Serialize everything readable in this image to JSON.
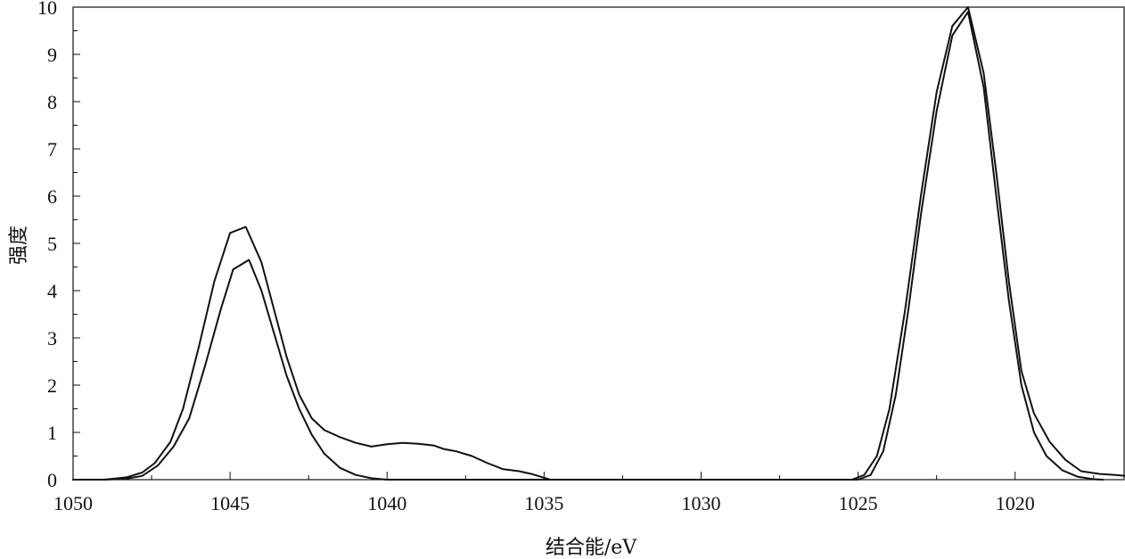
{
  "chart_data": {
    "type": "line",
    "title": "",
    "xlabel": "结合能/eV",
    "ylabel": "强度",
    "xlim": [
      1050,
      1016.5
    ],
    "ylim": [
      0,
      10
    ],
    "x_reversed": true,
    "grid": false,
    "x_ticks": [
      1050,
      1045,
      1040,
      1035,
      1030,
      1025,
      1020
    ],
    "y_ticks": [
      0,
      1,
      2,
      3,
      4,
      5,
      6,
      7,
      8,
      9,
      10
    ],
    "series": [
      {
        "points": [
          [
            1050.0,
            0.0
          ],
          [
            1049.0,
            0.0
          ],
          [
            1048.3,
            0.05
          ],
          [
            1047.8,
            0.15
          ],
          [
            1047.4,
            0.35
          ],
          [
            1046.9,
            0.8
          ],
          [
            1046.5,
            1.5
          ],
          [
            1046.0,
            2.8
          ],
          [
            1045.5,
            4.2
          ],
          [
            1045.0,
            5.22
          ],
          [
            1044.5,
            5.35
          ],
          [
            1044.0,
            4.6
          ],
          [
            1043.6,
            3.6
          ],
          [
            1043.2,
            2.6
          ],
          [
            1042.8,
            1.8
          ],
          [
            1042.4,
            1.3
          ],
          [
            1042.0,
            1.05
          ],
          [
            1041.5,
            0.9
          ],
          [
            1041.0,
            0.78
          ],
          [
            1040.5,
            0.7
          ],
          [
            1040.0,
            0.75
          ],
          [
            1039.5,
            0.78
          ],
          [
            1039.0,
            0.76
          ],
          [
            1038.5,
            0.72
          ],
          [
            1038.2,
            0.65
          ],
          [
            1037.8,
            0.6
          ],
          [
            1037.3,
            0.5
          ],
          [
            1036.8,
            0.35
          ],
          [
            1036.3,
            0.22
          ],
          [
            1035.8,
            0.18
          ],
          [
            1035.4,
            0.12
          ],
          [
            1035.0,
            0.04
          ],
          [
            1034.8,
            0.0
          ],
          [
            1025.2,
            0.0
          ],
          [
            1024.8,
            0.1
          ],
          [
            1024.4,
            0.5
          ],
          [
            1024.0,
            1.5
          ],
          [
            1023.5,
            3.6
          ],
          [
            1023.0,
            6.0
          ],
          [
            1022.5,
            8.2
          ],
          [
            1022.0,
            9.6
          ],
          [
            1021.5,
            10.0
          ],
          [
            1021.0,
            8.6
          ],
          [
            1020.6,
            6.5
          ],
          [
            1020.2,
            4.2
          ],
          [
            1019.8,
            2.3
          ],
          [
            1019.4,
            1.4
          ],
          [
            1018.9,
            0.8
          ],
          [
            1018.4,
            0.42
          ],
          [
            1017.9,
            0.18
          ],
          [
            1017.3,
            0.12
          ],
          [
            1016.8,
            0.1
          ],
          [
            1016.5,
            0.08
          ]
        ]
      },
      {
        "points": [
          [
            1050.0,
            0.0
          ],
          [
            1049.0,
            0.0
          ],
          [
            1048.3,
            0.02
          ],
          [
            1047.8,
            0.08
          ],
          [
            1047.3,
            0.3
          ],
          [
            1046.8,
            0.7
          ],
          [
            1046.3,
            1.3
          ],
          [
            1045.8,
            2.4
          ],
          [
            1045.3,
            3.6
          ],
          [
            1044.9,
            4.45
          ],
          [
            1044.4,
            4.65
          ],
          [
            1044.0,
            4.0
          ],
          [
            1043.6,
            3.1
          ],
          [
            1043.2,
            2.2
          ],
          [
            1042.8,
            1.5
          ],
          [
            1042.4,
            0.95
          ],
          [
            1042.0,
            0.55
          ],
          [
            1041.5,
            0.25
          ],
          [
            1041.0,
            0.1
          ],
          [
            1040.5,
            0.03
          ],
          [
            1040.0,
            0.0
          ],
          [
            1025.0,
            0.0
          ],
          [
            1024.6,
            0.1
          ],
          [
            1024.2,
            0.6
          ],
          [
            1023.8,
            1.8
          ],
          [
            1023.4,
            3.6
          ],
          [
            1023.0,
            5.6
          ],
          [
            1022.5,
            7.8
          ],
          [
            1022.0,
            9.4
          ],
          [
            1021.5,
            9.9
          ],
          [
            1021.0,
            8.3
          ],
          [
            1020.6,
            6.0
          ],
          [
            1020.2,
            3.8
          ],
          [
            1019.8,
            2.0
          ],
          [
            1019.4,
            1.0
          ],
          [
            1019.0,
            0.5
          ],
          [
            1018.5,
            0.2
          ],
          [
            1018.0,
            0.06
          ],
          [
            1017.5,
            0.01
          ],
          [
            1017.2,
            0.0
          ]
        ]
      }
    ]
  }
}
